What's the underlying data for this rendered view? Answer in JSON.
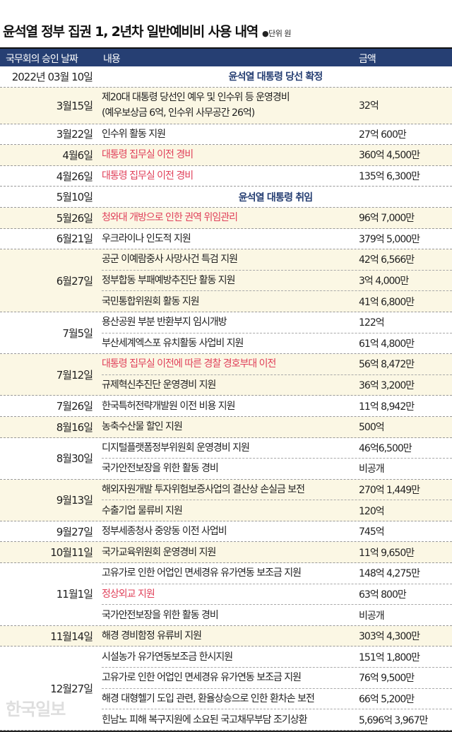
{
  "title": "윤석열 정부 집권 1, 2년차 일반예비비 사용 내역",
  "unit_label": "●단위 원",
  "header": {
    "date": "국무회의 승인 날짜",
    "content": "내용",
    "amount": "금액"
  },
  "colors": {
    "navy": "#263f73",
    "red": "#e0405a",
    "shade": "#fbf7e4"
  },
  "watermark": "한국일보",
  "groups": [
    {
      "date": "2022년 03월 10일",
      "event": "윤석열 대통령 당선 확정"
    },
    {
      "date": "3월15일",
      "items": [
        {
          "content": "제20대 대통령 당선인 예우 및 인수위 등 운영경비",
          "content2": "(예우보상금 6억, 인수위 사무공간 26억)",
          "amount": "32억"
        }
      ]
    },
    {
      "date": "3월22일",
      "items": [
        {
          "content": "인수위 활동 지원",
          "amount": "27억 600만"
        }
      ]
    },
    {
      "date": "4월6일",
      "items": [
        {
          "content": "대통령 집무실 이전 경비",
          "amount": "360억 4,500만",
          "highlight": true
        }
      ]
    },
    {
      "date": "4월26일",
      "items": [
        {
          "content": "대통령 집무실 이전 경비",
          "amount": "135억 6,300만",
          "highlight": true
        }
      ]
    },
    {
      "date": "5월10일",
      "event": "윤석열 대통령 취임"
    },
    {
      "date": "5월26일",
      "items": [
        {
          "content": "청와대 개방으로 인한 권역 위임관리",
          "amount": "96억 7,000만",
          "highlight": true
        }
      ]
    },
    {
      "date": "6월21일",
      "items": [
        {
          "content": "우크라이나 인도적 지원",
          "amount": "379억 5,000만"
        }
      ]
    },
    {
      "date": "6월27일",
      "items": [
        {
          "content": "공군 이예람중사 사망사건 특검 지원",
          "amount": "42억 6,566만"
        },
        {
          "content": "정부합동 부패예방추진단 활동 지원",
          "amount": "3억 4,000만"
        },
        {
          "content": "국민통합위원회 활동 지원",
          "amount": "41억 6,800만"
        }
      ]
    },
    {
      "date": "7월5일",
      "items": [
        {
          "content": "용산공원 부분 반환부지 임시개방",
          "amount": "122억"
        },
        {
          "content": "부산세계엑스포 유치활동 사업비 지원",
          "amount": "61억 4,800만"
        }
      ]
    },
    {
      "date": "7월12일",
      "items": [
        {
          "content": "대통령 집무실 이전에 따른 경찰 경호부대 이전",
          "amount": "56억 8,472만",
          "highlight": true
        },
        {
          "content": "규제혁신추진단 운영경비 지원",
          "amount": "36억 3,200만"
        }
      ]
    },
    {
      "date": "7월26일",
      "items": [
        {
          "content": "한국특허전략개발원 이전 비용 지원",
          "amount": "11억 8,942만"
        }
      ]
    },
    {
      "date": "8월16일",
      "items": [
        {
          "content": "농축수산물 할인 지원",
          "amount": "500억"
        }
      ]
    },
    {
      "date": "8월30일",
      "items": [
        {
          "content": "디지털플랫폼정부위원회 운영경비 지원",
          "amount": "46억6,500만"
        },
        {
          "content": "국가안전보장을 위한 활동 경비",
          "amount": "비공개"
        }
      ]
    },
    {
      "date": "9월13일",
      "items": [
        {
          "content": "해외자원개발 투자위험보증사업의 결산상 손실금 보전",
          "amount": "270억 1,449만"
        },
        {
          "content": "수출기업 물류비 지원",
          "amount": "120억"
        }
      ]
    },
    {
      "date": "9월27일",
      "items": [
        {
          "content": "정부세종청사 중앙동 이전 사업비",
          "amount": "745억"
        }
      ]
    },
    {
      "date": "10월11일",
      "items": [
        {
          "content": "국가교육위원회 운영경비 지원",
          "amount": "11억 9,650만"
        }
      ]
    },
    {
      "date": "11월1일",
      "items": [
        {
          "content": "고유가로 인한 어업인 면세경유 유가연동 보조금 지원",
          "amount": "148억 4,275만"
        },
        {
          "content": "정상외교 지원",
          "amount": "63억 800만",
          "highlight": true
        },
        {
          "content": "국가안전보장을 위한 활동 경비",
          "amount": "비공개"
        }
      ]
    },
    {
      "date": "11월14일",
      "items": [
        {
          "content": "해경 경비함정 유류비 지원",
          "amount": "303억 4,300만"
        }
      ]
    },
    {
      "date": "12월27일",
      "items": [
        {
          "content": "시설농가 유가연동보조금 한시지원",
          "amount": "151억 1,800만"
        },
        {
          "content": "고유가로 인한 어업인 면세경유 유가연동 보조금 지원",
          "amount": "76억 9,500만"
        },
        {
          "content": "해경 대형헬기 도입 관련, 환율상승으로 인한 환차손 보전",
          "amount": "66억 5,200만"
        },
        {
          "content": "힌남노 피해 복구지원에 소요된 국고채무부담 조기상환",
          "amount": "5,696억 3,967만"
        }
      ]
    }
  ]
}
